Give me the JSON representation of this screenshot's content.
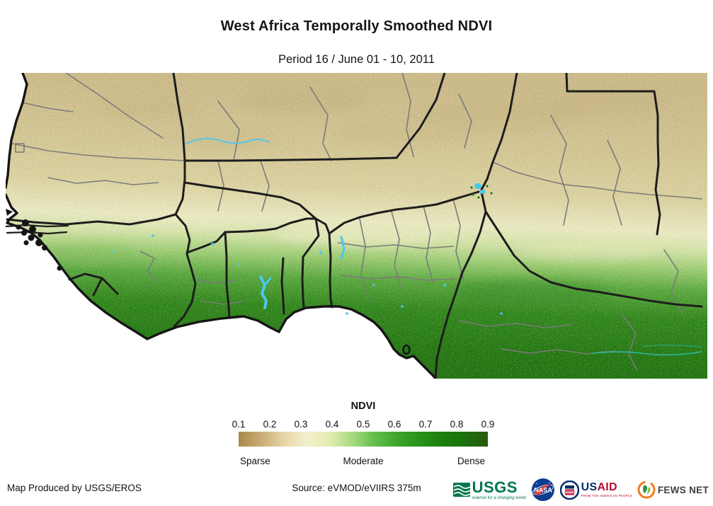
{
  "title": "West Africa Temporally Smoothed NDVI",
  "subtitle": "Period 16 / June 01 - 10, 2011",
  "legend": {
    "title": "NDVI",
    "ticks": [
      "0.1",
      "0.2",
      "0.3",
      "0.4",
      "0.5",
      "0.6",
      "0.7",
      "0.8",
      "0.9"
    ],
    "label_sparse": "Sparse",
    "label_moderate": "Moderate",
    "label_dense": "Dense",
    "gradient_colors": [
      "#ab884c",
      "#c9ad75",
      "#e7d6a6",
      "#f4f0cc",
      "#e3edb0",
      "#a8da80",
      "#62bf4b",
      "#3ea52c",
      "#28911a",
      "#1d7f0e",
      "#1a700c",
      "#2a590c"
    ]
  },
  "map": {
    "region": "West Africa NDVI raster",
    "ndvi_stops": [
      {
        "o": "0",
        "c": "#cfbd8a"
      },
      {
        "o": "0.18",
        "c": "#d6c794"
      },
      {
        "o": "0.34",
        "c": "#dfd5a2"
      },
      {
        "o": "0.45",
        "c": "#efeec5"
      },
      {
        "o": "0.51",
        "c": "#d5e7a8"
      },
      {
        "o": "0.57",
        "c": "#9ccf72"
      },
      {
        "o": "0.64",
        "c": "#58a93c"
      },
      {
        "o": "0.73",
        "c": "#2f8819"
      },
      {
        "o": "0.86",
        "c": "#21780f"
      },
      {
        "o": "1",
        "c": "#1e6f0d"
      }
    ],
    "colors": {
      "ocean": "#ffffff",
      "coastline": "#151515",
      "country_border": "#1d1d1d",
      "admin_border": "#7b7b78",
      "water": "#49c7ef",
      "river_teal": "#2fb7a0"
    }
  },
  "footer": {
    "produced_by": "Map Produced by USGS/EROS",
    "source": "Source: eVMOD/eVIIRS 375m",
    "logos": {
      "usgs": {
        "us": "US",
        "gs": "GS",
        "tagline": "science for a changing world"
      },
      "nasa": {
        "name": "NASA"
      },
      "usaid": {
        "us": "US",
        "aid": "AID",
        "tagline": "FROM THE AMERICAN PEOPLE"
      },
      "fewsnet": {
        "name": "FEWS NET"
      }
    }
  }
}
